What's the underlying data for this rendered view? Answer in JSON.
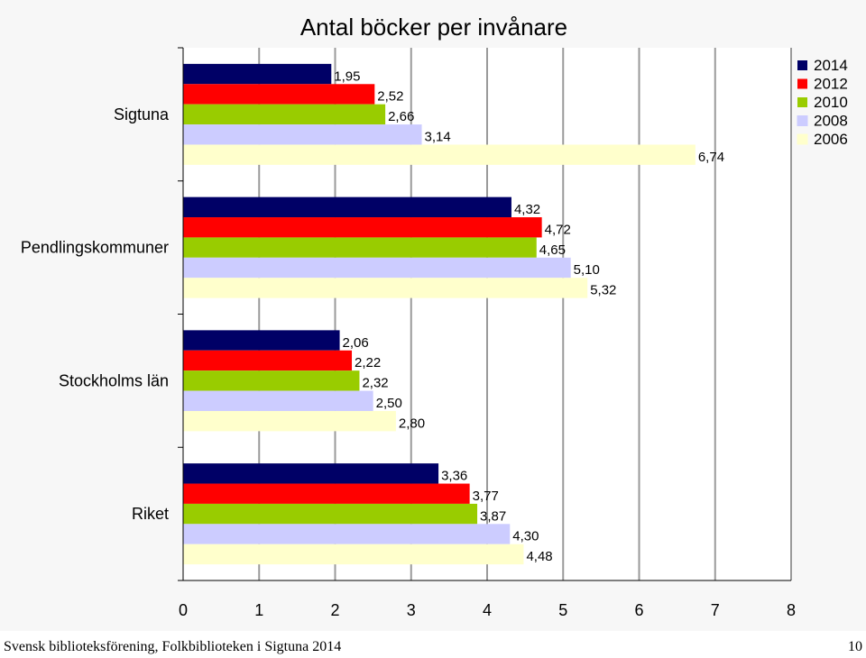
{
  "chart_data": {
    "type": "bar",
    "orientation": "horizontal",
    "title": "Antal böcker per invånare",
    "categories": [
      "Sigtuna",
      "Pendlingskommuner",
      "Stockholms län",
      "Riket"
    ],
    "series": [
      {
        "name": "2014",
        "color": "#000066",
        "values": [
          1.95,
          4.32,
          2.06,
          3.36
        ],
        "labels": [
          "1,95",
          "4,32",
          "2,06",
          "3,36"
        ]
      },
      {
        "name": "2012",
        "color": "#ff0000",
        "values": [
          2.52,
          4.72,
          2.22,
          3.77
        ],
        "labels": [
          "2,52",
          "4,72",
          "2,22",
          "3,77"
        ]
      },
      {
        "name": "2010",
        "color": "#99cc00",
        "values": [
          2.66,
          4.65,
          2.32,
          3.87
        ],
        "labels": [
          "2,66",
          "4,65",
          "2,32",
          "3,87"
        ]
      },
      {
        "name": "2008",
        "color": "#ccccff",
        "values": [
          3.14,
          5.1,
          2.5,
          4.3
        ],
        "labels": [
          "3,14",
          "5,10",
          "2,50",
          "4,30"
        ]
      },
      {
        "name": "2006",
        "color": "#ffffcc",
        "values": [
          6.74,
          5.32,
          2.8,
          4.48
        ],
        "labels": [
          "6,74",
          "5,32",
          "2,80",
          "4,48"
        ]
      }
    ],
    "xlim": [
      0,
      8
    ],
    "xticks": [
      "0",
      "1",
      "2",
      "3",
      "4",
      "5",
      "6",
      "7",
      "8"
    ],
    "grid": true,
    "legend_position": "top-right"
  },
  "footer": {
    "source": "Svensk biblioteksförening, Folkbiblioteken i Sigtuna 2014",
    "page_number": "10"
  }
}
